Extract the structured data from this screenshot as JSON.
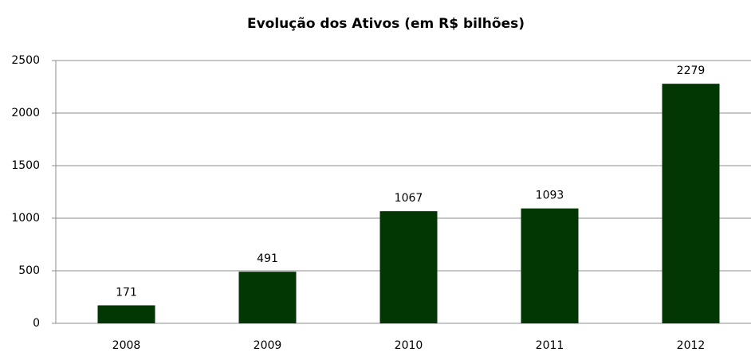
{
  "chart_data": {
    "type": "bar",
    "title": "Evolução dos Ativos (em R$ bilhões)",
    "categories": [
      "2008",
      "2009",
      "2010",
      "2011",
      "2012"
    ],
    "values": [
      171,
      491,
      1067,
      1093,
      2279
    ],
    "color": "#023602",
    "ylim": [
      0,
      2500
    ],
    "yticks": [
      0,
      500,
      1000,
      1500,
      2000,
      2500
    ],
    "grid": true
  }
}
